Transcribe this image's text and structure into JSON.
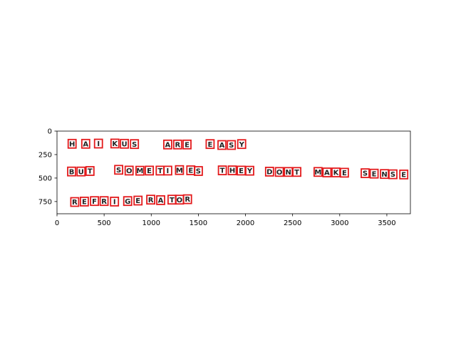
{
  "chart_data": {
    "type": "image-annotation",
    "title": "",
    "xlabel": "",
    "ylabel": "",
    "xlim": [
      0,
      3750
    ],
    "ylim": [
      880,
      0
    ],
    "x_ticks": [
      0,
      500,
      1000,
      1500,
      2000,
      2500,
      3000,
      3500
    ],
    "y_ticks": [
      0,
      250,
      500,
      750
    ],
    "grid": false,
    "legend": "none",
    "box_color": "#e31a1c",
    "glyph_color": "#222222",
    "lines": [
      {
        "words": [
          {
            "glyphs": [
              {
                "char": "H",
                "x": 160,
                "y": 135
              },
              {
                "char": "A",
                "x": 305,
                "y": 135
              },
              {
                "char": "I",
                "x": 440,
                "y": 133
              },
              {
                "char": "K",
                "x": 615,
                "y": 132
              },
              {
                "char": "U",
                "x": 715,
                "y": 135
              },
              {
                "char": "S",
                "x": 822,
                "y": 138
              }
            ]
          },
          {
            "glyphs": [
              {
                "char": "A",
                "x": 1175,
                "y": 143
              },
              {
                "char": "R",
                "x": 1280,
                "y": 143
              },
              {
                "char": "E",
                "x": 1380,
                "y": 143
              }
            ]
          },
          {
            "glyphs": [
              {
                "char": "E",
                "x": 1625,
                "y": 138
              },
              {
                "char": "A",
                "x": 1750,
                "y": 148
              },
              {
                "char": "S",
                "x": 1850,
                "y": 148
              },
              {
                "char": "Y",
                "x": 1960,
                "y": 138
              }
            ]
          }
        ]
      },
      {
        "words": [
          {
            "glyphs": [
              {
                "char": "B",
                "x": 155,
                "y": 430
              },
              {
                "char": "U",
                "x": 255,
                "y": 430
              },
              {
                "char": "T",
                "x": 350,
                "y": 425
              }
            ]
          },
          {
            "glyphs": [
              {
                "char": "S",
                "x": 655,
                "y": 412
              },
              {
                "char": "O",
                "x": 765,
                "y": 420
              },
              {
                "char": "M",
                "x": 880,
                "y": 422
              },
              {
                "char": "E",
                "x": 980,
                "y": 420
              },
              {
                "char": "T",
                "x": 1095,
                "y": 420
              },
              {
                "char": "I",
                "x": 1175,
                "y": 420
              },
              {
                "char": "M",
                "x": 1300,
                "y": 415
              },
              {
                "char": "E",
                "x": 1420,
                "y": 417
              },
              {
                "char": "S",
                "x": 1500,
                "y": 425
              }
            ]
          },
          {
            "glyphs": [
              {
                "char": "T",
                "x": 1755,
                "y": 418
              },
              {
                "char": "H",
                "x": 1860,
                "y": 418
              },
              {
                "char": "E",
                "x": 1955,
                "y": 420
              },
              {
                "char": "Y",
                "x": 2045,
                "y": 422
              }
            ]
          },
          {
            "glyphs": [
              {
                "char": "D",
                "x": 2255,
                "y": 432
              },
              {
                "char": "O",
                "x": 2360,
                "y": 435
              },
              {
                "char": "N",
                "x": 2455,
                "y": 435
              },
              {
                "char": "T",
                "x": 2545,
                "y": 435
              }
            ]
          },
          {
            "glyphs": [
              {
                "char": "M",
                "x": 2770,
                "y": 435
              },
              {
                "char": "A",
                "x": 2865,
                "y": 440
              },
              {
                "char": "K",
                "x": 2960,
                "y": 440
              },
              {
                "char": "E",
                "x": 3050,
                "y": 443
              }
            ]
          },
          {
            "glyphs": [
              {
                "char": "S",
                "x": 3270,
                "y": 448
              },
              {
                "char": "E",
                "x": 3365,
                "y": 453
              },
              {
                "char": "N",
                "x": 3475,
                "y": 457
              },
              {
                "char": "S",
                "x": 3565,
                "y": 460
              },
              {
                "char": "E",
                "x": 3680,
                "y": 462
              }
            ]
          }
        ]
      },
      {
        "words": [
          {
            "glyphs": [
              {
                "char": "R",
                "x": 188,
                "y": 755
              },
              {
                "char": "E",
                "x": 290,
                "y": 750
              },
              {
                "char": "F",
                "x": 398,
                "y": 745
              },
              {
                "char": "R",
                "x": 500,
                "y": 745
              },
              {
                "char": "I",
                "x": 610,
                "y": 750
              },
              {
                "char": "G",
                "x": 750,
                "y": 745
              },
              {
                "char": "E",
                "x": 860,
                "y": 740
              },
              {
                "char": "R",
                "x": 995,
                "y": 730
              },
              {
                "char": "A",
                "x": 1100,
                "y": 735
              },
              {
                "char": "T",
                "x": 1220,
                "y": 730
              },
              {
                "char": "O",
                "x": 1300,
                "y": 730
              },
              {
                "char": "R",
                "x": 1385,
                "y": 725
              }
            ]
          }
        ]
      }
    ]
  }
}
